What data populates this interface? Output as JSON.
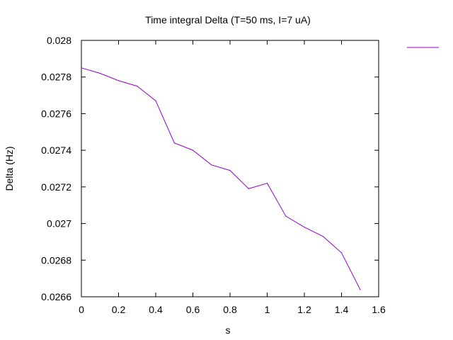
{
  "chart_data": {
    "type": "line",
    "title": "Time integral Delta (T=50 ms, I=7 uA)",
    "xlabel": "s",
    "ylabel": "Delta (Hz)",
    "xlim": [
      0,
      1.6
    ],
    "ylim": [
      0.0266,
      0.028
    ],
    "xticks": [
      "0",
      "0.2",
      "0.4",
      "0.6",
      "0.8",
      "1",
      "1.2",
      "1.4",
      "1.6"
    ],
    "yticks": [
      "0.0266",
      "0.0268",
      "0.027",
      "0.0272",
      "0.0274",
      "0.0276",
      "0.0278",
      "0.028"
    ],
    "grid": false,
    "legend": "top-right",
    "series": [
      {
        "color": "#9400d3",
        "x": [
          0,
          0.1,
          0.2,
          0.3,
          0.4,
          0.5,
          0.6,
          0.7,
          0.8,
          0.9,
          1.0,
          1.1,
          1.2,
          1.3,
          1.4,
          1.5
        ],
        "y": [
          0.02785,
          0.02782,
          0.02778,
          0.02775,
          0.02767,
          0.02744,
          0.0274,
          0.02732,
          0.02729,
          0.02719,
          0.02722,
          0.02704,
          0.02698,
          0.02693,
          0.02684,
          0.02664
        ]
      }
    ]
  }
}
